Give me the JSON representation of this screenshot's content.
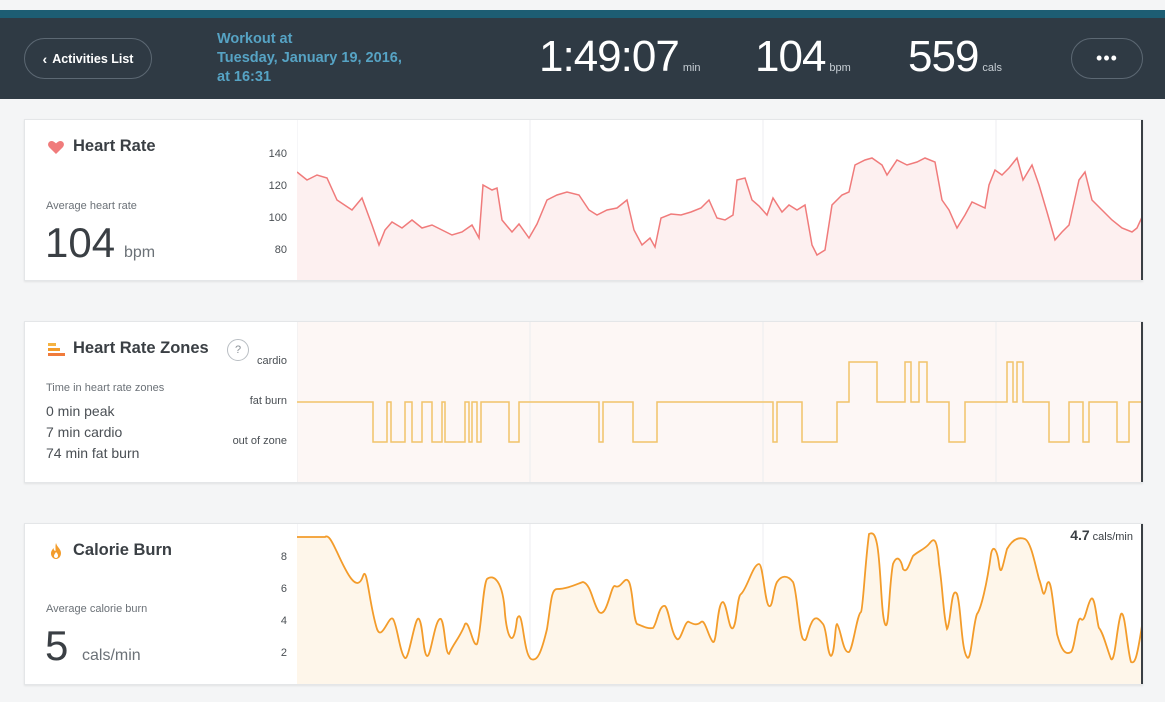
{
  "header": {
    "back_label": "Activities List",
    "workout_title_line1": "Workout at",
    "workout_title_line2": "Tuesday, January 19, 2016,",
    "workout_title_line3": "at 16:31",
    "duration": "1:49:07",
    "duration_unit": "min",
    "avg_bpm": "104",
    "avg_bpm_unit": "bpm",
    "calories": "559",
    "calories_unit": "cals",
    "more_label": "•••"
  },
  "heart_rate": {
    "title": "Heart Rate",
    "sub": "Average heart rate",
    "value": "104",
    "unit": "bpm",
    "color": "#f07b7b",
    "y_ticks": [
      "140",
      "120",
      "100",
      "80"
    ]
  },
  "zones": {
    "title": "Heart Rate Zones",
    "help": "?",
    "sub": "Time in heart rate zones",
    "peak": "0 min peak",
    "cardio": "7 min cardio",
    "fatburn": "74 min fat burn",
    "levels": [
      "cardio",
      "fat burn",
      "out of zone"
    ],
    "color": "#f2c46a"
  },
  "calories_chart": {
    "title": "Calorie Burn",
    "sub": "Average calorie burn",
    "value": "5",
    "unit": "cals/min",
    "current_value": "4.7",
    "current_unit": "cals/min",
    "color": "#f39c2b",
    "y_ticks": [
      "8",
      "6",
      "4",
      "2"
    ]
  }
}
